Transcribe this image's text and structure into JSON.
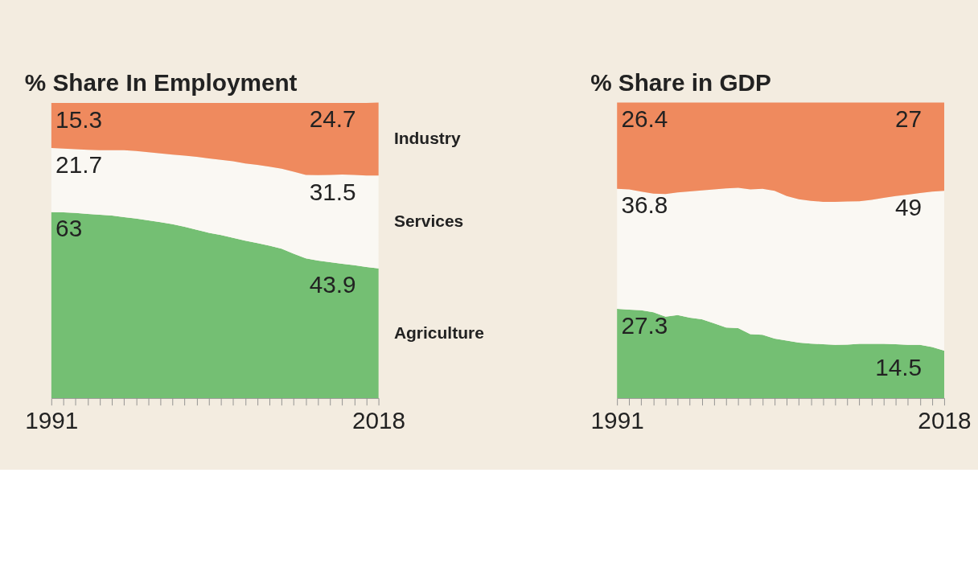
{
  "chart_data": [
    {
      "type": "area",
      "stacked": true,
      "title": "% Share In Employment",
      "tick_labels": "x",
      "legend": "right",
      "x": [
        1991,
        1992,
        1993,
        1994,
        1995,
        1996,
        1997,
        1998,
        1999,
        2000,
        2001,
        2002,
        2003,
        2004,
        2005,
        2006,
        2007,
        2008,
        2009,
        2010,
        2011,
        2012,
        2013,
        2014,
        2015,
        2016,
        2017,
        2018
      ],
      "xlim": [
        1991,
        2018
      ],
      "xticks": [
        1991,
        {
          "value": 1992,
          "label": null
        },
        {
          "value": 1993,
          "label": null
        },
        {
          "value": 1994,
          "label": null
        },
        {
          "value": 1995,
          "label": null
        },
        {
          "value": 1996,
          "label": null
        },
        {
          "value": 1997,
          "label": null
        },
        {
          "value": 1998,
          "label": null
        },
        {
          "value": 1999,
          "label": null
        },
        {
          "value": 2000,
          "label": null
        },
        {
          "value": 2001,
          "label": null
        },
        {
          "value": 2002,
          "label": null
        },
        {
          "value": 2003,
          "label": null
        },
        {
          "value": 2004,
          "label": null
        },
        {
          "value": 2005,
          "label": null
        },
        {
          "value": 2006,
          "label": null
        },
        {
          "value": 2007,
          "label": null
        },
        {
          "value": 2008,
          "label": null
        },
        {
          "value": 2009,
          "label": null
        },
        {
          "value": 2010,
          "label": null
        },
        {
          "value": 2011,
          "label": null
        },
        {
          "value": 2012,
          "label": null
        },
        {
          "value": 2013,
          "label": null
        },
        {
          "value": 2014,
          "label": null
        },
        {
          "value": 2015,
          "label": null
        },
        {
          "value": 2016,
          "label": null
        },
        {
          "value": 2017,
          "label": null
        },
        2018
      ],
      "series": [
        {
          "name": "Agriculture",
          "color": "#74bf73",
          "values": [
            63,
            62.9,
            62.7,
            62.4,
            62.1,
            61.8,
            61.3,
            60.8,
            60.2,
            59.6,
            58.9,
            58.0,
            57.0,
            56.0,
            55.2,
            54.3,
            53.3,
            52.5,
            51.6,
            50.6,
            48.9,
            47.3,
            46.6,
            46.0,
            45.5,
            45.0,
            44.4,
            43.9
          ],
          "value_labels": [
            "63",
            null,
            null,
            null,
            null,
            null,
            null,
            null,
            null,
            null,
            null,
            null,
            null,
            null,
            null,
            null,
            null,
            null,
            null,
            null,
            null,
            null,
            null,
            null,
            null,
            null,
            null,
            "43.9"
          ]
        },
        {
          "name": "Services",
          "color": "#faf8f3",
          "values": [
            21.7,
            21.6,
            21.6,
            21.7,
            21.9,
            22.2,
            22.7,
            22.9,
            23.1,
            23.3,
            23.6,
            24.1,
            24.7,
            25.2,
            25.5,
            25.9,
            26.2,
            26.5,
            26.8,
            27.1,
            27.8,
            28.3,
            28.9,
            29.6,
            30.2,
            30.6,
            31.0,
            31.5
          ],
          "value_labels": [
            "21.7",
            null,
            null,
            null,
            null,
            null,
            null,
            null,
            null,
            null,
            null,
            null,
            null,
            null,
            null,
            null,
            null,
            null,
            null,
            null,
            null,
            null,
            null,
            null,
            null,
            null,
            null,
            "31.5"
          ]
        },
        {
          "name": "Industry",
          "color": "#ef8a5e",
          "values": [
            15.3,
            15.5,
            15.7,
            15.9,
            16.0,
            16.0,
            16.0,
            16.3,
            16.7,
            17.1,
            17.5,
            17.9,
            18.3,
            18.8,
            19.3,
            19.8,
            20.5,
            21.0,
            21.6,
            22.3,
            23.3,
            24.4,
            24.5,
            24.4,
            24.3,
            24.4,
            24.6,
            24.7
          ],
          "value_labels": [
            "15.3",
            null,
            null,
            null,
            null,
            null,
            null,
            null,
            null,
            null,
            null,
            null,
            null,
            null,
            null,
            null,
            null,
            null,
            null,
            null,
            null,
            null,
            null,
            null,
            null,
            null,
            null,
            "24.7"
          ]
        }
      ]
    },
    {
      "type": "area",
      "stacked": true,
      "title": "% Share in GDP",
      "tick_labels": "x",
      "x": [
        1991,
        1992,
        1993,
        1994,
        1995,
        1996,
        1997,
        1998,
        1999,
        2000,
        2001,
        2002,
        2003,
        2004,
        2005,
        2006,
        2007,
        2008,
        2009,
        2010,
        2011,
        2012,
        2013,
        2014,
        2015,
        2016,
        2017,
        2018
      ],
      "xlim": [
        1991,
        2018
      ],
      "xticks": [
        1991,
        {
          "value": 1992,
          "label": null
        },
        {
          "value": 1993,
          "label": null
        },
        {
          "value": 1994,
          "label": null
        },
        {
          "value": 1995,
          "label": null
        },
        {
          "value": 1996,
          "label": null
        },
        {
          "value": 1997,
          "label": null
        },
        {
          "value": 1998,
          "label": null
        },
        {
          "value": 1999,
          "label": null
        },
        {
          "value": 2000,
          "label": null
        },
        {
          "value": 2001,
          "label": null
        },
        {
          "value": 2002,
          "label": null
        },
        {
          "value": 2003,
          "label": null
        },
        {
          "value": 2004,
          "label": null
        },
        {
          "value": 2005,
          "label": null
        },
        {
          "value": 2006,
          "label": null
        },
        {
          "value": 2007,
          "label": null
        },
        {
          "value": 2008,
          "label": null
        },
        {
          "value": 2009,
          "label": null
        },
        {
          "value": 2010,
          "label": null
        },
        {
          "value": 2011,
          "label": null
        },
        {
          "value": 2012,
          "label": null
        },
        {
          "value": 2013,
          "label": null
        },
        {
          "value": 2014,
          "label": null
        },
        {
          "value": 2015,
          "label": null
        },
        {
          "value": 2016,
          "label": null
        },
        {
          "value": 2017,
          "label": null
        },
        2018
      ],
      "series": [
        {
          "color": "#74bf73",
          "values": [
            27.3,
            27.1,
            26.9,
            26.3,
            24.9,
            25.4,
            24.6,
            24.1,
            22.9,
            21.6,
            21.4,
            19.6,
            19.4,
            18.2,
            17.6,
            17.0,
            16.7,
            16.5,
            16.3,
            16.4,
            16.6,
            16.6,
            16.6,
            16.5,
            16.3,
            16.3,
            15.6,
            14.5
          ],
          "value_labels": [
            "27.3",
            null,
            null,
            null,
            null,
            null,
            null,
            null,
            null,
            null,
            null,
            null,
            null,
            null,
            null,
            null,
            null,
            null,
            null,
            null,
            null,
            null,
            null,
            null,
            null,
            null,
            null,
            "14.5"
          ]
        },
        {
          "color": "#faf8f3",
          "values": [
            36.8,
            36.8,
            36.3,
            36.3,
            37.6,
            37.6,
            38.7,
            39.5,
            41.0,
            42.6,
            43.0,
            44.3,
            44.7,
            45.3,
            44.3,
            43.9,
            43.7,
            43.6,
            43.8,
            43.8,
            43.7,
            44.1,
            44.7,
            45.4,
            46.0,
            46.5,
            47.6,
            49.0
          ],
          "value_labels": [
            "36.8",
            null,
            null,
            null,
            null,
            null,
            null,
            null,
            null,
            null,
            null,
            null,
            null,
            null,
            null,
            null,
            null,
            null,
            null,
            null,
            null,
            null,
            null,
            null,
            null,
            null,
            null,
            "49"
          ]
        },
        {
          "color": "#ef8a5e",
          "values": [
            26.4,
            26.6,
            27.3,
            27.9,
            28.0,
            27.5,
            27.2,
            26.9,
            26.6,
            26.3,
            26.1,
            26.6,
            26.4,
            27.0,
            28.6,
            29.6,
            30.1,
            30.4,
            30.4,
            30.3,
            30.2,
            29.8,
            29.2,
            28.6,
            28.2,
            27.7,
            27.3,
            27.0
          ],
          "value_labels": [
            "26.4",
            null,
            null,
            null,
            null,
            null,
            null,
            null,
            null,
            null,
            null,
            null,
            null,
            null,
            null,
            null,
            null,
            null,
            null,
            null,
            null,
            null,
            null,
            null,
            null,
            null,
            null,
            "27"
          ]
        }
      ]
    }
  ]
}
